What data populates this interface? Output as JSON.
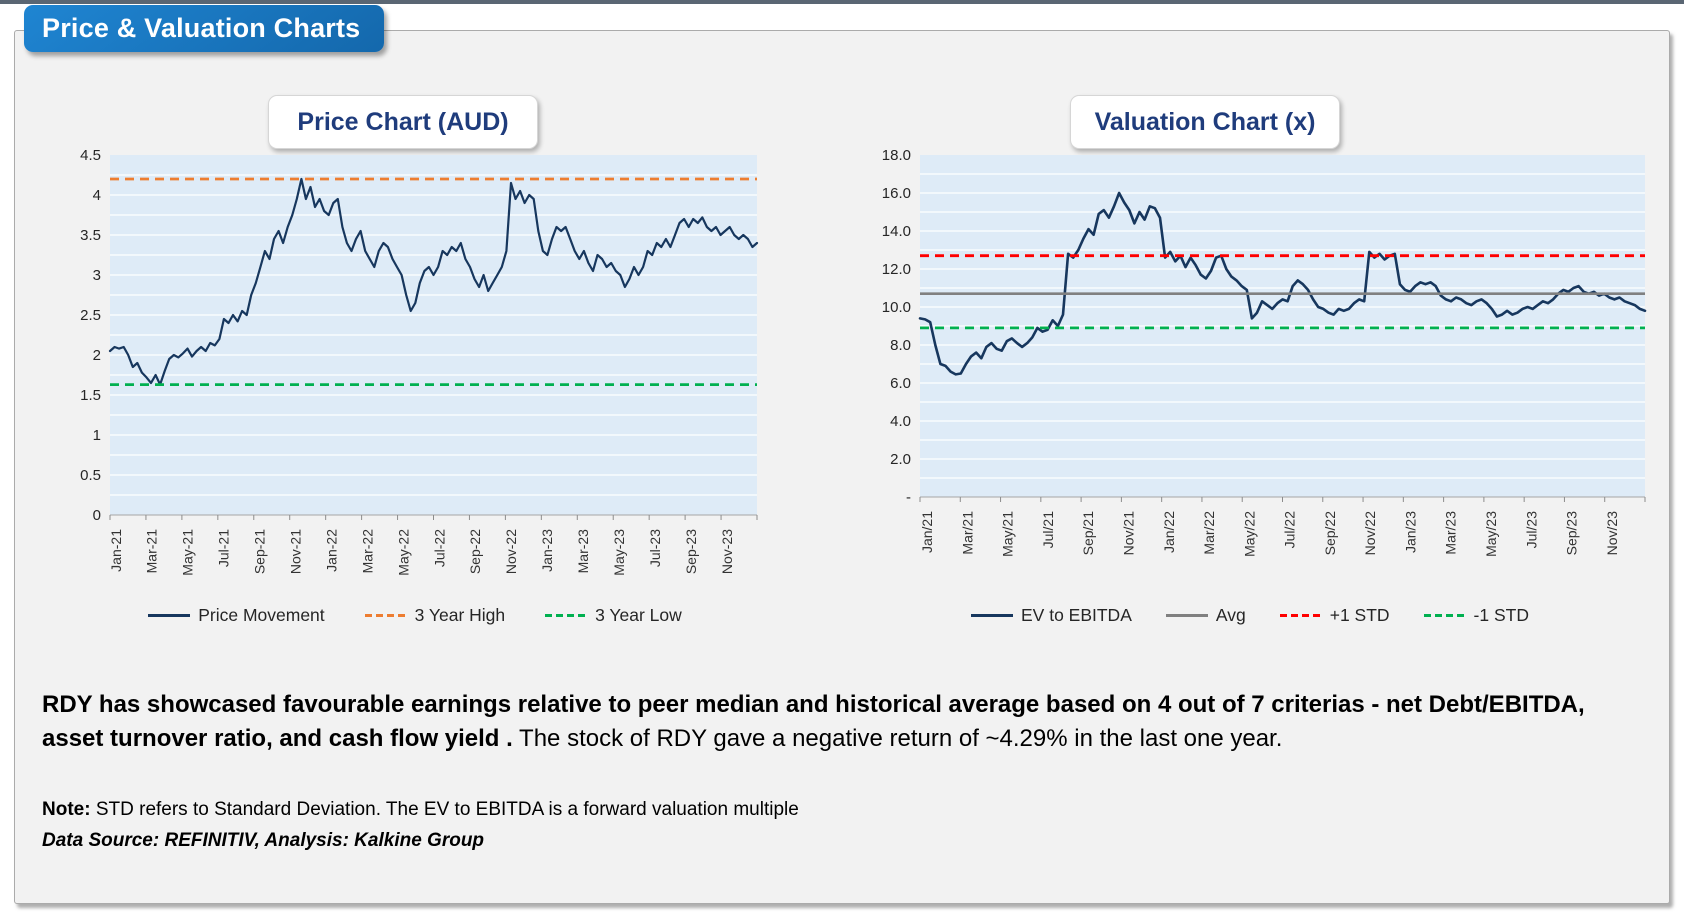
{
  "badge": {
    "title": "Price & Valuation Charts"
  },
  "chart_data": [
    {
      "type": "line",
      "title": "Price Chart (AUD)",
      "ylim": [
        0,
        4.5
      ],
      "y_major_step": 0.5,
      "y_minor_step": 0.25,
      "y_tick_labels": [
        "4.5",
        "4",
        "3.5",
        "3",
        "2.5",
        "2",
        "1.5",
        "1",
        "0.5",
        "0"
      ],
      "x_tick_labels": [
        "Jan-21",
        "Mar-21",
        "May-21",
        "Jul-21",
        "Sep-21",
        "Nov-21",
        "Jan-22",
        "Mar-22",
        "May-22",
        "Jul-22",
        "Sep-22",
        "Nov-22",
        "Jan-23",
        "Mar-23",
        "May-23",
        "Jul-23",
        "Sep-23",
        "Nov-23"
      ],
      "months_span": 36,
      "plot_bg": "#DEEBF7",
      "grid_color": "#FFFFFF",
      "legend_position": "bottom",
      "series": [
        {
          "name": "Price Movement",
          "color": "#17375E",
          "line": "solid",
          "width": 2.2,
          "values": [
            2.05,
            2.1,
            2.08,
            2.1,
            2.0,
            1.85,
            1.9,
            1.78,
            1.72,
            1.65,
            1.75,
            1.63,
            1.8,
            1.95,
            2.0,
            1.97,
            2.02,
            2.08,
            1.98,
            2.05,
            2.1,
            2.05,
            2.15,
            2.12,
            2.2,
            2.45,
            2.4,
            2.5,
            2.42,
            2.55,
            2.5,
            2.75,
            2.9,
            3.1,
            3.3,
            3.2,
            3.45,
            3.55,
            3.4,
            3.6,
            3.75,
            3.95,
            4.2,
            3.95,
            4.1,
            3.85,
            3.95,
            3.8,
            3.75,
            3.9,
            3.95,
            3.6,
            3.4,
            3.3,
            3.45,
            3.55,
            3.3,
            3.2,
            3.1,
            3.3,
            3.4,
            3.35,
            3.2,
            3.1,
            3.0,
            2.75,
            2.55,
            2.65,
            2.9,
            3.05,
            3.1,
            3.0,
            3.1,
            3.3,
            3.25,
            3.35,
            3.3,
            3.4,
            3.2,
            3.1,
            2.95,
            2.85,
            3.0,
            2.8,
            2.9,
            3.0,
            3.1,
            3.3,
            4.15,
            3.95,
            4.05,
            3.9,
            4.0,
            3.95,
            3.55,
            3.3,
            3.25,
            3.45,
            3.6,
            3.55,
            3.6,
            3.45,
            3.3,
            3.2,
            3.3,
            3.15,
            3.05,
            3.25,
            3.2,
            3.1,
            3.15,
            3.05,
            3.0,
            2.85,
            2.95,
            3.1,
            3.0,
            3.1,
            3.3,
            3.25,
            3.4,
            3.35,
            3.45,
            3.35,
            3.5,
            3.65,
            3.7,
            3.6,
            3.7,
            3.65,
            3.72,
            3.6,
            3.55,
            3.6,
            3.5,
            3.55,
            3.6,
            3.5,
            3.45,
            3.5,
            3.45,
            3.35,
            3.4
          ]
        },
        {
          "name": "3 Year High",
          "color": "#ED7D31",
          "line": "dashed",
          "width": 2.8,
          "const_value": 4.2
        },
        {
          "name": "3 Year Low",
          "color": "#00B050",
          "line": "dashed",
          "width": 2.8,
          "const_value": 1.63
        }
      ]
    },
    {
      "type": "line",
      "title": "Valuation Chart (x)",
      "ylim": [
        0,
        18
      ],
      "y_major_step": 2,
      "y_minor_step": 1,
      "y_tick_labels": [
        "18.0",
        "16.0",
        "14.0",
        "12.0",
        "10.0",
        "8.0",
        "6.0",
        "4.0",
        "2.0",
        "-"
      ],
      "x_tick_labels": [
        "Jan/21",
        "Mar/21",
        "May/21",
        "Jul/21",
        "Sep/21",
        "Nov/21",
        "Jan/22",
        "Mar/22",
        "May/22",
        "Jul/22",
        "Sep/22",
        "Nov/22",
        "Jan/23",
        "Mar/23",
        "May/23",
        "Jul/23",
        "Sep/23",
        "Nov/23"
      ],
      "months_span": 36,
      "plot_bg": "#DEEBF7",
      "grid_color": "#FFFFFF",
      "legend_position": "bottom",
      "series": [
        {
          "name": "EV to EBITDA",
          "color": "#17375E",
          "line": "solid",
          "width": 2.6,
          "values": [
            9.4,
            9.35,
            9.2,
            8.0,
            7.0,
            6.9,
            6.6,
            6.45,
            6.5,
            7.0,
            7.4,
            7.6,
            7.3,
            7.9,
            8.1,
            7.8,
            7.7,
            8.2,
            8.35,
            8.1,
            7.9,
            8.1,
            8.4,
            8.9,
            8.7,
            8.8,
            9.3,
            9.0,
            9.6,
            12.8,
            12.6,
            13.0,
            13.6,
            14.1,
            13.8,
            14.9,
            15.1,
            14.7,
            15.3,
            16.0,
            15.5,
            15.1,
            14.4,
            15.0,
            14.6,
            15.3,
            15.2,
            14.7,
            12.6,
            12.9,
            12.4,
            12.7,
            12.1,
            12.6,
            12.2,
            11.7,
            11.5,
            11.9,
            12.6,
            12.7,
            12.0,
            11.6,
            11.4,
            11.1,
            10.9,
            9.4,
            9.7,
            10.3,
            10.1,
            9.9,
            10.2,
            10.4,
            10.3,
            11.1,
            11.4,
            11.2,
            10.9,
            10.4,
            10.0,
            9.9,
            9.7,
            9.6,
            9.9,
            9.8,
            9.9,
            10.2,
            10.4,
            10.3,
            12.9,
            12.6,
            12.8,
            12.5,
            12.7,
            12.8,
            11.2,
            10.9,
            10.8,
            11.1,
            11.3,
            11.2,
            11.3,
            11.1,
            10.6,
            10.4,
            10.3,
            10.5,
            10.4,
            10.2,
            10.1,
            10.3,
            10.4,
            10.2,
            9.9,
            9.5,
            9.6,
            9.8,
            9.6,
            9.7,
            9.9,
            10.0,
            9.9,
            10.1,
            10.3,
            10.2,
            10.4,
            10.7,
            10.9,
            10.8,
            11.0,
            11.1,
            10.8,
            10.7,
            10.8,
            10.6,
            10.7,
            10.5,
            10.4,
            10.5,
            10.3,
            10.2,
            10.1,
            9.9,
            9.8
          ]
        },
        {
          "name": "Avg",
          "color": "#808080",
          "line": "solid",
          "width": 2.6,
          "const_value": 10.7
        },
        {
          "name": "+1 STD",
          "color": "#FF0000",
          "line": "dashed",
          "width": 2.8,
          "const_value": 12.7
        },
        {
          "name": "-1 STD",
          "color": "#00B050",
          "line": "dashed",
          "width": 2.8,
          "const_value": 8.9
        }
      ]
    }
  ],
  "commentary": {
    "bold": "RDY has showcased favourable earnings relative to peer median and historical average based on 4 out of 7 criterias - net Debt/EBITDA, asset turnover ratio, and cash flow yield .",
    "regular": " The stock of RDY gave a negative return of ~4.29% in the last one year."
  },
  "note": {
    "label": "Note:",
    "text": " STD refers to Standard Deviation. The EV to EBITDA is a forward valuation multiple"
  },
  "source": "Data Source: REFINITIV, Analysis: Kalkine Group"
}
